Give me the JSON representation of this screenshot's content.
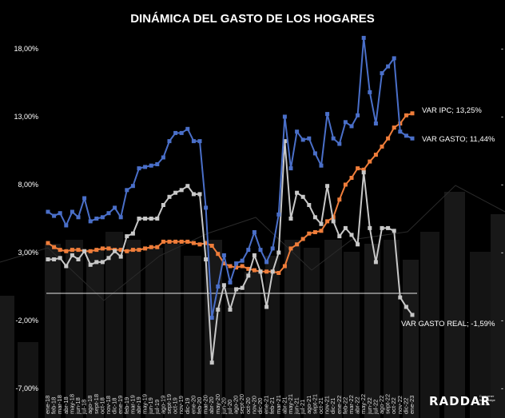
{
  "chart_data": {
    "type": "line",
    "title": "DINÁMICA DEL GASTO DE LOS HOGARES",
    "xlabel": "",
    "ylabel": "",
    "ylim": [
      -7,
      20
    ],
    "y_ticks": [
      "18,00%",
      "13,00%",
      "8,00%",
      "3,00%",
      "-2,00%",
      "-7,00%"
    ],
    "y_tick_values": [
      18,
      13,
      8,
      3,
      -2,
      -7
    ],
    "reference_line": 0,
    "x": [
      "ene-18",
      "feb-18",
      "mar-18",
      "abr-18",
      "may-18",
      "jun-18",
      "jul-18",
      "ago-18",
      "sept-18",
      "oct-18",
      "nov-18",
      "dic-18",
      "ene-19",
      "feb-19",
      "mar-19",
      "abr-19",
      "may-19",
      "jun-19",
      "jul-19",
      "ago-19",
      "sept-19",
      "oct-19",
      "nov-19",
      "dic-19",
      "ene-20",
      "feb-20",
      "mar-20",
      "abr-20",
      "may-20",
      "jun-20",
      "jul-20",
      "ago-20",
      "sept-20",
      "oct-20",
      "nov-20",
      "dic-20",
      "ene-21",
      "feb-21",
      "mar-21",
      "abr-21",
      "may-21",
      "jun-21",
      "jul-21",
      "ago-21",
      "sept-21",
      "oct-21",
      "nov-21",
      "dic-21",
      "ene-22",
      "feb-22",
      "mar-22",
      "abr-22",
      "may-22",
      "jun-22",
      "jul-22",
      "ago-22",
      "sept-22",
      "oct-22",
      "nov-22",
      "dic-22",
      "ene-23"
    ],
    "series": [
      {
        "name": "VAR GASTO",
        "color": "#4a6fc9",
        "values": [
          6.0,
          5.7,
          5.9,
          5.0,
          6.0,
          5.6,
          7.0,
          5.3,
          5.5,
          5.6,
          5.9,
          6.3,
          5.6,
          7.6,
          7.9,
          9.2,
          9.3,
          9.4,
          9.5,
          10.0,
          11.2,
          11.8,
          11.8,
          12.1,
          11.2,
          11.2,
          6.3,
          -1.8,
          0.5,
          2.8,
          0.8,
          2.2,
          2.4,
          3.2,
          4.5,
          3.2,
          2.3,
          3.3,
          5.8,
          13.0,
          9.2,
          11.9,
          11.3,
          11.4,
          10.3,
          9.4,
          13.2,
          11.4,
          11.0,
          12.6,
          12.3,
          13.1,
          18.8,
          14.8,
          12.5,
          16.2,
          16.7,
          17.3,
          11.9,
          11.6,
          11.4
        ]
      },
      {
        "name": "VAR IPC",
        "color": "#ef7d3a",
        "values": [
          3.7,
          3.4,
          3.2,
          3.1,
          3.2,
          3.2,
          3.1,
          3.1,
          3.2,
          3.3,
          3.3,
          3.2,
          3.2,
          3.1,
          3.2,
          3.2,
          3.3,
          3.4,
          3.4,
          3.8,
          3.8,
          3.8,
          3.8,
          3.8,
          3.7,
          3.6,
          3.7,
          3.5,
          2.9,
          2.2,
          2.0,
          1.9,
          2.0,
          1.8,
          1.7,
          1.6,
          1.6,
          1.6,
          1.5,
          2.0,
          3.3,
          3.6,
          4.0,
          4.4,
          4.5,
          4.6,
          5.3,
          5.6,
          6.9,
          8.0,
          8.5,
          9.2,
          9.1,
          9.7,
          10.2,
          10.8,
          11.4,
          12.2,
          12.5,
          13.1,
          13.25
        ]
      },
      {
        "name": "VAR GASTO REAL",
        "color": "#c8c8c8",
        "values": [
          2.5,
          2.5,
          2.6,
          2.0,
          2.8,
          2.5,
          3.1,
          2.1,
          2.3,
          2.3,
          2.6,
          3.1,
          2.7,
          4.2,
          4.4,
          5.5,
          5.5,
          5.5,
          5.5,
          6.5,
          7.1,
          7.4,
          7.6,
          7.9,
          7.3,
          7.3,
          2.5,
          -5.1,
          -1.2,
          0.6,
          -1.2,
          0.3,
          0.4,
          1.3,
          2.8,
          1.6,
          -1.0,
          1.6,
          3.0,
          11.2,
          5.5,
          7.4,
          7.1,
          6.5,
          5.6,
          5.1,
          7.9,
          5.3,
          4.2,
          4.8,
          4.3,
          3.6,
          8.9,
          4.8,
          2.3,
          4.8,
          4.8,
          4.6,
          -0.3,
          -1.0,
          -1.59
        ]
      }
    ],
    "annotations": [
      {
        "series": "VAR IPC",
        "text": "VAR IPC; 13,25%"
      },
      {
        "series": "VAR GASTO",
        "text": "VAR GASTO; 11,44%"
      },
      {
        "series": "VAR GASTO REAL",
        "text": "VAR GASTO REAL; -1,59%"
      }
    ],
    "grid": false,
    "legend": "none"
  },
  "brand": {
    "name": "RADDAR",
    "tagline_line1": "Consumer",
    "tagline_line2": "Knowledge",
    "tagline_line3": "Group"
  }
}
